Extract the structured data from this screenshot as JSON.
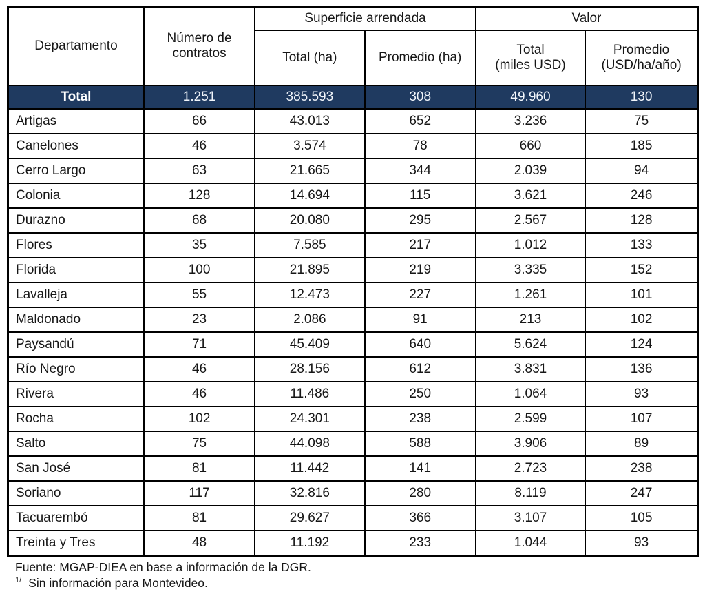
{
  "table": {
    "header": {
      "departamento": "Departamento",
      "numero_contratos": "Número de contratos",
      "superficie_group": "Superficie arrendada",
      "valor_group": "Valor",
      "superficie_total": "Total (ha)",
      "superficie_promedio": "Promedio (ha)",
      "valor_total_line1": "Total",
      "valor_total_line2": "(miles USD)",
      "valor_promedio_line1": "Promedio",
      "valor_promedio_line2": "(USD/ha/año)"
    },
    "total_row": {
      "label": "Total",
      "values": [
        "1.251",
        "385.593",
        "308",
        "49.960",
        "130"
      ]
    },
    "rows": [
      {
        "departamento": "Artigas",
        "values": [
          "66",
          "43.013",
          "652",
          "3.236",
          "75"
        ]
      },
      {
        "departamento": "Canelones",
        "values": [
          "46",
          "3.574",
          "78",
          "660",
          "185"
        ]
      },
      {
        "departamento": "Cerro Largo",
        "values": [
          "63",
          "21.665",
          "344",
          "2.039",
          "94"
        ]
      },
      {
        "departamento": "Colonia",
        "values": [
          "128",
          "14.694",
          "115",
          "3.621",
          "246"
        ]
      },
      {
        "departamento": "Durazno",
        "values": [
          "68",
          "20.080",
          "295",
          "2.567",
          "128"
        ]
      },
      {
        "departamento": "Flores",
        "values": [
          "35",
          "7.585",
          "217",
          "1.012",
          "133"
        ]
      },
      {
        "departamento": "Florida",
        "values": [
          "100",
          "21.895",
          "219",
          "3.335",
          "152"
        ]
      },
      {
        "departamento": "Lavalleja",
        "values": [
          "55",
          "12.473",
          "227",
          "1.261",
          "101"
        ]
      },
      {
        "departamento": "Maldonado",
        "values": [
          "23",
          "2.086",
          "91",
          "213",
          "102"
        ]
      },
      {
        "departamento": "Paysandú",
        "values": [
          "71",
          "45.409",
          "640",
          "5.624",
          "124"
        ]
      },
      {
        "departamento": "Río Negro",
        "values": [
          "46",
          "28.156",
          "612",
          "3.831",
          "136"
        ]
      },
      {
        "departamento": "Rivera",
        "values": [
          "46",
          "11.486",
          "250",
          "1.064",
          "93"
        ]
      },
      {
        "departamento": "Rocha",
        "values": [
          "102",
          "24.301",
          "238",
          "2.599",
          "107"
        ]
      },
      {
        "departamento": "Salto",
        "values": [
          "75",
          "44.098",
          "588",
          "3.906",
          "89"
        ]
      },
      {
        "departamento": "San José",
        "values": [
          "81",
          "11.442",
          "141",
          "2.723",
          "238"
        ]
      },
      {
        "departamento": "Soriano",
        "values": [
          "117",
          "32.816",
          "280",
          "8.119",
          "247"
        ]
      },
      {
        "departamento": "Tacuarembó",
        "values": [
          "81",
          "29.627",
          "366",
          "3.107",
          "105"
        ]
      },
      {
        "departamento": "Treinta y Tres",
        "values": [
          "48",
          "11.192",
          "233",
          "1.044",
          "93"
        ]
      }
    ],
    "colors": {
      "total_row_bg": "#1f3a60",
      "total_row_text": "#f2f6fb",
      "border": "#000000",
      "text": "#161616"
    }
  },
  "footer": {
    "fuente": "Fuente: MGAP-DIEA en base a información de la DGR.",
    "footnote_marker": "1/",
    "footnote_text": "Sin información para Montevideo."
  }
}
